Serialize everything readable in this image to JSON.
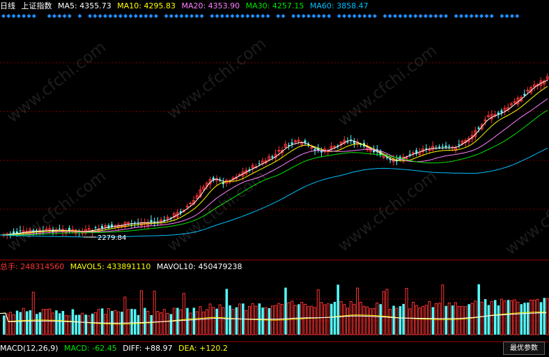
{
  "header": {
    "period": "日线",
    "instrument": "上证指数",
    "ma5_label": "MA5:",
    "ma5_value": "4355.73",
    "ma10_label": "MA10:",
    "ma10_value": "4295.83",
    "ma20_label": "MA20:",
    "ma20_value": "4353.90",
    "ma30_label": "MA30:",
    "ma30_value": "4257.15",
    "ma60_label": "MA60:",
    "ma60_value": "3858.47"
  },
  "volume_header": {
    "vol_label": "总手:",
    "vol_value": "248314560",
    "mavol5_label": "MAVOL5:",
    "mavol5_value": "433891110",
    "mavol10_label": "MAVOL10:",
    "mavol10_value": "450479238"
  },
  "macd_header": {
    "title": "MACD(12,26,9)",
    "macd_label": "MACD:",
    "macd_value": "-62.45",
    "diff_label": "DIFF:",
    "diff_value": "+88.97",
    "dea_label": "DEA:",
    "dea_value": "+120.2"
  },
  "price_annotation": "2279.84",
  "buttons": {
    "optimize": "最优参数"
  },
  "watermark": "www.cfchi.com",
  "colors": {
    "background": "#000000",
    "up": "#ff3333",
    "down": "#54fcfc",
    "ma5": "#ffffff",
    "ma10": "#ffff00",
    "ma20": "#ff80ff",
    "ma30": "#00e600",
    "ma60": "#00c0ff",
    "grid": "#800000",
    "signal": "#1e90ff"
  }
}
